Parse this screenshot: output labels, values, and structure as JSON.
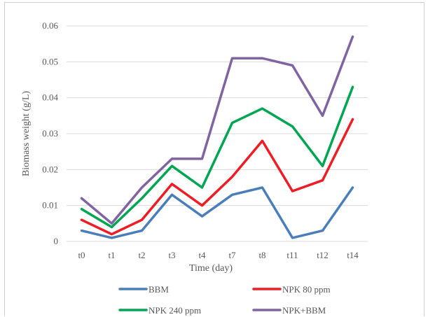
{
  "chart_data": {
    "type": "line",
    "title": "",
    "xlabel": "Time (day)",
    "ylabel": "Biomass weight (g/L)",
    "categories": [
      "t0",
      "t1",
      "t2",
      "t3",
      "t4",
      "t7",
      "t8",
      "t11",
      "t12",
      "t14"
    ],
    "ylim": [
      0,
      0.06
    ],
    "yticks": [
      "0",
      "0.01",
      "0.02",
      "0.03",
      "0.04",
      "0.05",
      "0.06"
    ],
    "grid": true,
    "legend_position": "bottom",
    "series": [
      {
        "name": "BBM",
        "color": "#4a7ebb",
        "values": [
          0.003,
          0.001,
          0.003,
          0.013,
          0.007,
          0.013,
          0.015,
          0.001,
          0.003,
          0.015
        ]
      },
      {
        "name": "NPK 80 ppm",
        "color": "#ee1c24",
        "values": [
          0.006,
          0.002,
          0.006,
          0.016,
          0.01,
          0.018,
          0.028,
          0.014,
          0.017,
          0.034
        ]
      },
      {
        "name": "NPK 240 ppm",
        "color": "#00a651",
        "values": [
          0.009,
          0.004,
          0.012,
          0.021,
          0.015,
          0.033,
          0.037,
          0.032,
          0.021,
          0.043
        ]
      },
      {
        "name": "NPK+BBM",
        "color": "#8064a2",
        "values": [
          0.012,
          0.005,
          0.015,
          0.023,
          0.023,
          0.051,
          0.051,
          0.049,
          0.035,
          0.057
        ]
      }
    ]
  }
}
